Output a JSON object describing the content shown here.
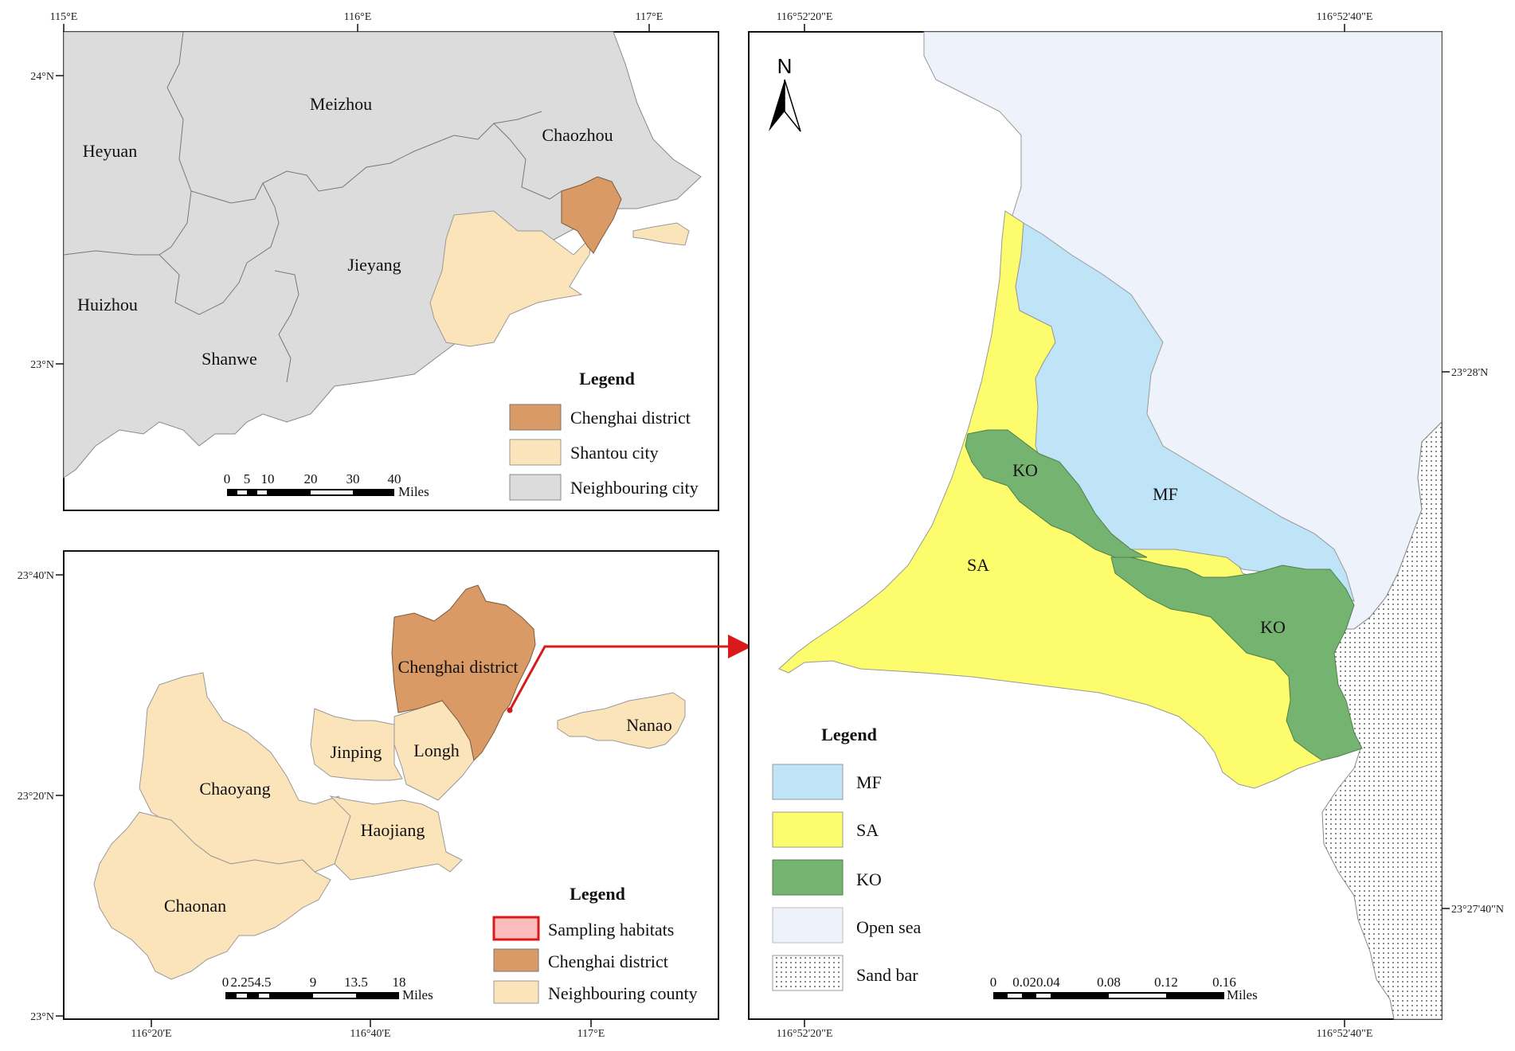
{
  "colors": {
    "chenghai": "#d99a66",
    "shantou": "#fbe4b9",
    "neighbouring_city": "#dcdcdc",
    "mf": "#bfe4f8",
    "sa": "#fcfc6c",
    "ko": "#75b371",
    "open_sea": "#eef3fb",
    "arrow": "#d91a1a"
  },
  "map1": {
    "x_ticks": [
      "115°E",
      "116°E",
      "117°E"
    ],
    "y_ticks": [
      "24°N",
      "23°N"
    ],
    "places": {
      "meizhou": "Meizhou",
      "chaozhou": "Chaozhou",
      "heyuan": "Heyuan",
      "jieyang": "Jieyang",
      "huizhou": "Huizhou",
      "shanwe": "Shanwe"
    },
    "legend": {
      "title": "Legend",
      "items": [
        "Chenghai district",
        "Shantou city",
        "Neighbouring city"
      ]
    },
    "scalebar": {
      "labels": [
        "0",
        "5",
        "10",
        "20",
        "30",
        "40"
      ],
      "unit": "Miles"
    }
  },
  "map2": {
    "x_ticks": [
      "116°20'E",
      "116°40'E",
      "117°E"
    ],
    "y_ticks": [
      "23°40'N",
      "23°20'N",
      "23°N"
    ],
    "places": {
      "chenghai": "Chenghai district",
      "jinping": "Jinping",
      "longh": "Longh",
      "nanao": "Nanao",
      "chaoyang": "Chaoyang",
      "haojiang": "Haojiang",
      "chaonan": "Chaonan"
    },
    "legend": {
      "title": "Legend",
      "items": [
        "Sampling habitats",
        "Chenghai district",
        "Neighbouring county"
      ]
    },
    "scalebar": {
      "labels": [
        "0",
        "2.254.5",
        "9",
        "13.5",
        "18"
      ],
      "unit": "Miles"
    }
  },
  "map3": {
    "x_ticks": [
      "116°52'20\"E",
      "116°52'40\"E"
    ],
    "y_ticks": [
      "23°28'N",
      "23°27'40\"N"
    ],
    "north": "N",
    "zones": {
      "mf": "MF",
      "sa": "SA",
      "ko1": "KO",
      "ko2": "KO"
    },
    "legend": {
      "title": "Legend",
      "items": [
        "MF",
        "SA",
        "KO",
        "Open sea",
        "Sand bar"
      ]
    },
    "scalebar": {
      "labels": [
        "0",
        "0.020.04",
        "0.08",
        "0.12",
        "0.16"
      ],
      "unit": "Miles"
    }
  }
}
